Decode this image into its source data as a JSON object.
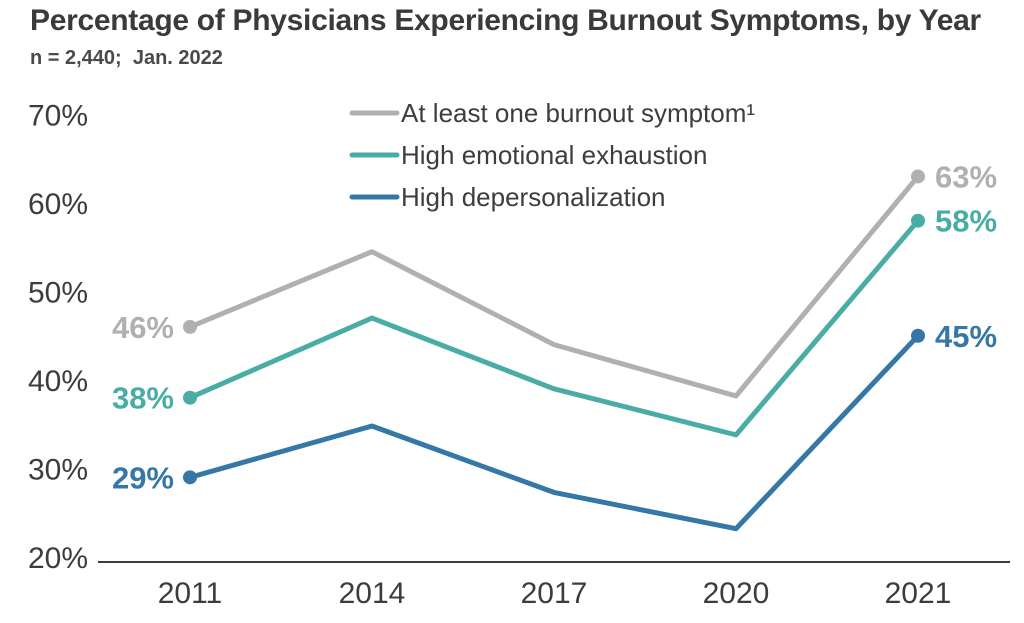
{
  "chart_data": {
    "type": "line",
    "title": "Percentage of Physicians Experiencing Burnout Symptoms, by Year",
    "subtitle": "n = 2,440;  Jan. 2022",
    "x_categories": [
      "2011",
      "2014",
      "2017",
      "2020",
      "2021"
    ],
    "ylim": [
      20,
      70
    ],
    "y_ticks": [
      {
        "value": 70,
        "label": "70%"
      },
      {
        "value": 60,
        "label": "60%"
      },
      {
        "value": 50,
        "label": "50%"
      },
      {
        "value": 40,
        "label": "40%"
      },
      {
        "value": 30,
        "label": "30%"
      },
      {
        "value": 20,
        "label": "20%"
      }
    ],
    "grid": false,
    "legend_position": "top-center-inside",
    "series": [
      {
        "name": "At least one burnout symptom¹",
        "slug": "at-least-one-burnout-symptom",
        "color": "#B0B0B0",
        "values": [
          46,
          54.5,
          44,
          38.2,
          63
        ],
        "endpoint_labels": {
          "first": "46%",
          "last": "63%"
        }
      },
      {
        "name": "High emotional exhaustion",
        "slug": "high-emotional-exhaustion",
        "color": "#49ADA5",
        "values": [
          38,
          47,
          39,
          33.8,
          58
        ],
        "endpoint_labels": {
          "first": "38%",
          "last": "58%"
        }
      },
      {
        "name": "High depersonalization",
        "slug": "high-depersonalization",
        "color": "#3577A6",
        "values": [
          29,
          34.8,
          27.3,
          23.2,
          45
        ],
        "endpoint_labels": {
          "first": "29%",
          "last": "45%"
        }
      }
    ],
    "colors": {
      "title_text": "#3A3A3A",
      "subtitle_text": "#4A4A4A",
      "tick_text": "#3C3C3C",
      "legend_text": "#3D3D3D",
      "axis_line": "#3B3B3B",
      "background": "#FFFFFF"
    }
  }
}
